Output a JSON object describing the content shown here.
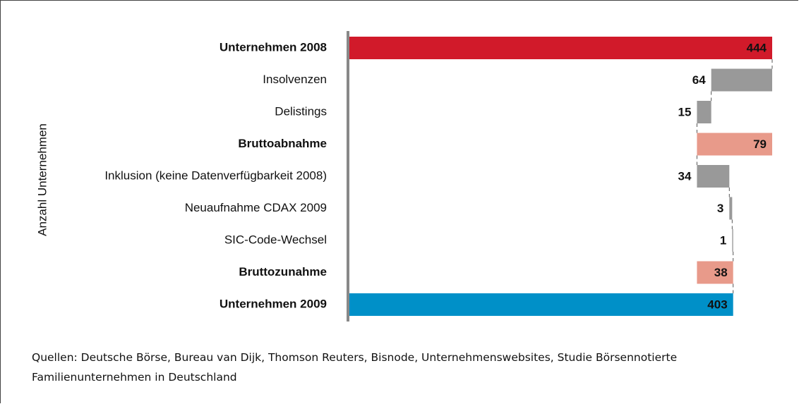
{
  "chart_data": {
    "type": "waterfall",
    "y_axis_label": "Anzahl Unternehmen",
    "categories": [
      "Unternehmen 2008",
      "Insolvenzen",
      "Delistings",
      "Bruttoabnahme",
      "Inklusion (keine Datenverfügbarkeit 2008)",
      "Neuaufnahme CDAX 2009",
      "SIC-Code-Wechsel",
      "Bruttozunahme",
      "Unternehmen 2009"
    ],
    "values": [
      444,
      64,
      15,
      79,
      34,
      3,
      1,
      38,
      403
    ],
    "kinds": [
      "total",
      "decrease",
      "decrease",
      "decrease-sum",
      "increase",
      "increase",
      "increase",
      "increase-sum",
      "total"
    ],
    "colors": [
      "#d11a2a",
      "#999999",
      "#999999",
      "#e89a8a",
      "#999999",
      "#999999",
      "#999999",
      "#e89a8a",
      "#0090c8"
    ],
    "xlim": [
      0,
      444
    ],
    "source": "Quellen: Deutsche Börse, Bureau van Dijk, Thomson Reuters, Bisnode, Unternehmenswebsites, Studie Börsennotierte Familienunternehmen in Deutschland"
  }
}
